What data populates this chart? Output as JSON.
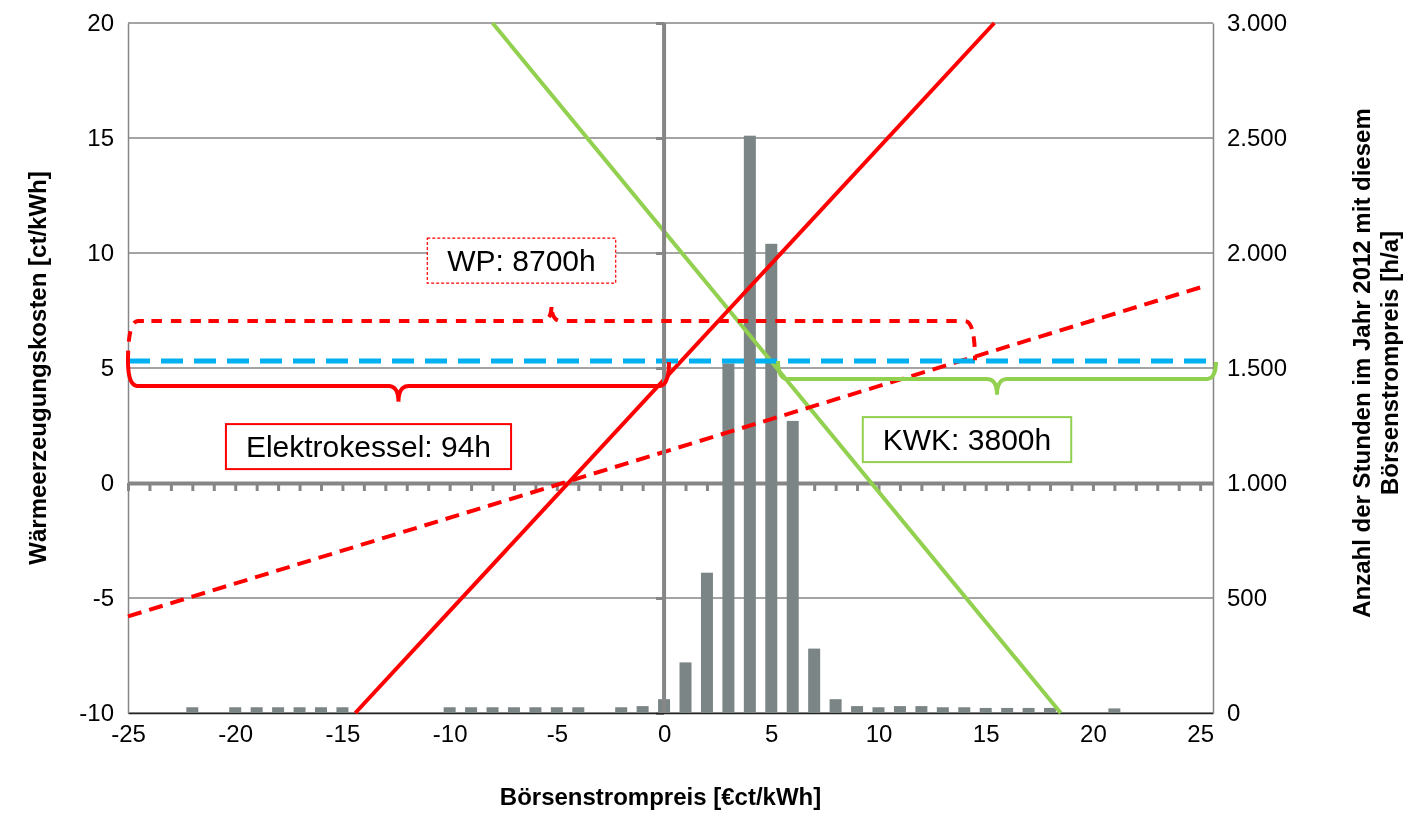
{
  "chart_data": {
    "type": "line",
    "xlabel": "Börsenstrompreis [€ct/kWh]",
    "ylabel": "Wärmeerzeugungskosten [ct/kWh]",
    "y2label": "Anzahl der Stunden im Jahr 2012 mit diesem Börsenstrompreis [h/a]",
    "xlim": [
      -25,
      25.6
    ],
    "xticks": [
      -25,
      -20,
      -15,
      -10,
      -5,
      0,
      5,
      10,
      15,
      20,
      25
    ],
    "ylim": [
      -10,
      20
    ],
    "yticks": [
      -10,
      -5,
      0,
      5,
      10,
      15,
      20
    ],
    "y2lim": [
      0,
      3000
    ],
    "y2ticks": [
      {
        "value": 0,
        "label": "0"
      },
      {
        "value": 500,
        "label": "500"
      },
      {
        "value": 1000,
        "label": "1.000"
      },
      {
        "value": 1500,
        "label": "1.500"
      },
      {
        "value": 2000,
        "label": "2.000"
      },
      {
        "value": 2500,
        "label": "2.500"
      },
      {
        "value": 3000,
        "label": "3.000"
      }
    ],
    "grid": "y",
    "series": [
      {
        "type": "bar",
        "axis": "y2",
        "color": "#7b8585",
        "x": [
          -22,
          -20,
          -19,
          -18,
          -17,
          -16,
          -15,
          -10,
          -9,
          -8,
          -7,
          -6,
          -5,
          -4,
          -2,
          -1,
          0,
          1,
          2,
          3,
          4,
          5,
          6,
          7,
          8,
          9,
          10,
          11,
          12,
          13,
          14,
          15,
          16,
          17,
          18,
          21
        ],
        "values": [
          25,
          25,
          25,
          25,
          25,
          25,
          25,
          25,
          25,
          25,
          25,
          25,
          25,
          25,
          25,
          30,
          60,
          220,
          610,
          1520,
          2510,
          2040,
          1270,
          280,
          60,
          30,
          25,
          30,
          30,
          25,
          25,
          22,
          22,
          22,
          22,
          20
        ]
      },
      {
        "color": "#92d050",
        "line_style": "solid",
        "x": [
          -8,
          18.5
        ],
        "values": [
          20,
          -10
        ]
      },
      {
        "color": "#ff0000",
        "line_style": "solid",
        "x": [
          -14.4,
          15.4
        ],
        "values": [
          -10,
          20
        ]
      },
      {
        "color": "#ff0000",
        "line_style": "dashed",
        "x": [
          -25,
          25
        ],
        "values": [
          -5.8,
          8.5
        ]
      }
    ],
    "ref_lines": [
      {
        "axis": "y",
        "value": 5.3,
        "color": "#00b0f0",
        "line_style": "dashed"
      },
      {
        "axis": "x",
        "value": 0,
        "color": "#868686",
        "line_style": "solid"
      }
    ],
    "annotations": [
      "WP: 8700h",
      "Elektrokessel: 94h",
      "KWK: 3800h"
    ]
  }
}
